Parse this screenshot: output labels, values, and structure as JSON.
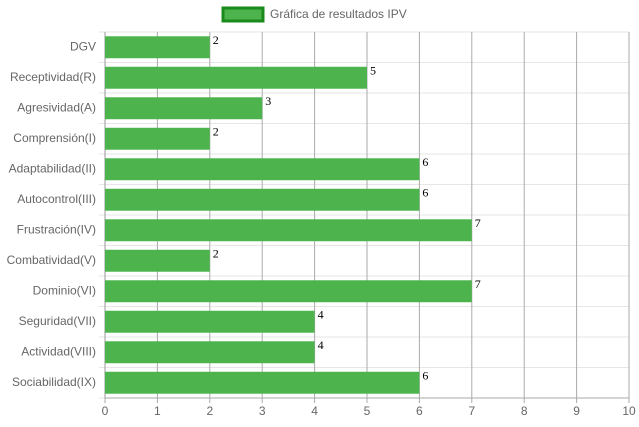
{
  "chart_data": {
    "type": "bar",
    "orientation": "horizontal",
    "categories": [
      "DGV",
      "Receptividad(R)",
      "Agresividad(A)",
      "Comprensión(I)",
      "Adaptabilidad(II)",
      "Autocontrol(III)",
      "Frustración(IV)",
      "Combatividad(V)",
      "Dominio(VI)",
      "Seguridad(VII)",
      "Actividad(VIII)",
      "Sociabilidad(IX)"
    ],
    "series": [
      {
        "name": "Gráfica de resultados IPV",
        "color": "#4db34d",
        "border_color": "#1a8a1a",
        "values": [
          2,
          5,
          3,
          2,
          6,
          6,
          7,
          2,
          7,
          4,
          4,
          6
        ]
      }
    ],
    "xlim": [
      0,
      10
    ],
    "xticks": [
      0,
      1,
      2,
      3,
      4,
      5,
      6,
      7,
      8,
      9,
      10
    ],
    "grid": true,
    "legend": "top"
  }
}
